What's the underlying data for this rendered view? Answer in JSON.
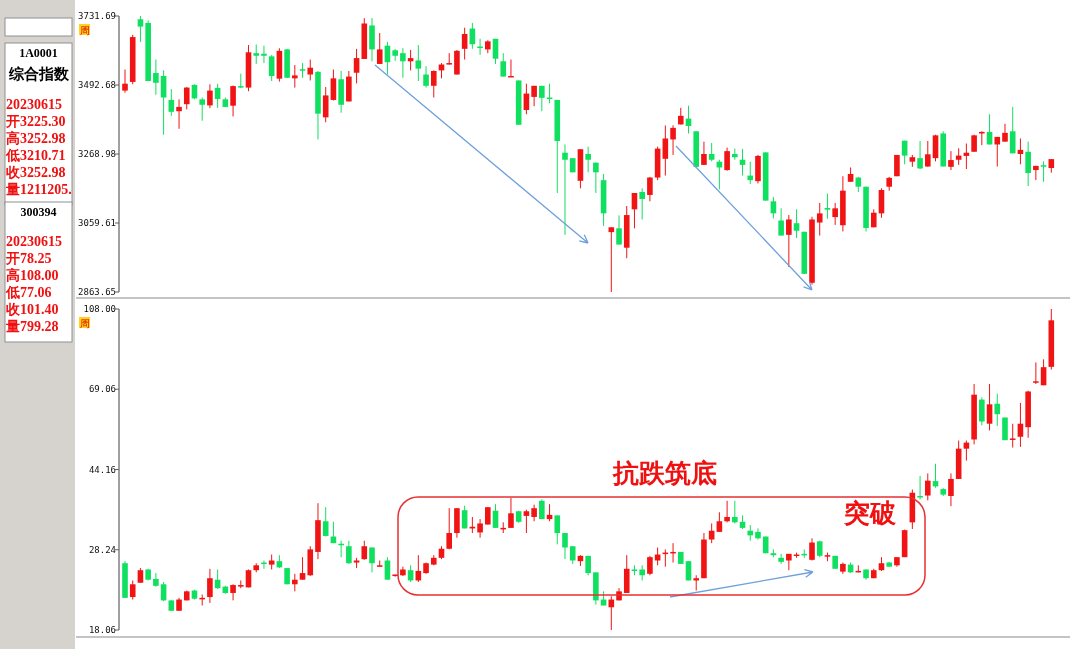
{
  "chart_data": [
    {
      "type": "candlestick",
      "log": true,
      "tick_labels": "y",
      "ylim": [
        2863.65,
        3731.69
      ],
      "yticks": [
        2863.65,
        3059.61,
        3268.98,
        3492.68,
        3731.69
      ],
      "annotations": [
        "周",
        "1A0001",
        "综合指数",
        "20230615",
        "开3225.30",
        "高3252.98",
        "低3210.71",
        "收3252.98",
        "量1211205."
      ],
      "categories": [
        null,
        null,
        null,
        null,
        null,
        null,
        null,
        null,
        null,
        null,
        null,
        null,
        null,
        null,
        null,
        null,
        null,
        null,
        null,
        null,
        null,
        null,
        null,
        null,
        null,
        null,
        null,
        null,
        null,
        null,
        null,
        null,
        null,
        null,
        null,
        null,
        null,
        null,
        null,
        null,
        null,
        null,
        null,
        null,
        null,
        null,
        null,
        null,
        null,
        null,
        null,
        null,
        null,
        null,
        null,
        null,
        null,
        null,
        null,
        null,
        null,
        null,
        null,
        null,
        null,
        null,
        null,
        null,
        null,
        null,
        null,
        null,
        null,
        null,
        null,
        null,
        null,
        null,
        null,
        null,
        null,
        null,
        null,
        null,
        null,
        null,
        null,
        null,
        null,
        null,
        null,
        null,
        null,
        null,
        null,
        null,
        null,
        null,
        null,
        null,
        null,
        null,
        null,
        null,
        null,
        null,
        null,
        null,
        null,
        null,
        null,
        null,
        null,
        null,
        null,
        null,
        null,
        null,
        null,
        null,
        null
      ],
      "ohlc": [
        [
          3474,
          3545,
          3467,
          3497
        ],
        [
          3503,
          3665,
          3495,
          3657
        ],
        [
          3720,
          3731.69,
          3640,
          3694
        ],
        [
          3707,
          3716,
          3506,
          3506
        ],
        [
          3533,
          3579,
          3460,
          3500
        ],
        [
          3523,
          3542,
          3330,
          3451
        ],
        [
          3443,
          3479,
          3391,
          3404
        ],
        [
          3406,
          3445,
          3349,
          3420
        ],
        [
          3429,
          3486,
          3412,
          3484
        ],
        [
          3493,
          3495,
          3445,
          3448
        ],
        [
          3445,
          3451,
          3375,
          3427
        ],
        [
          3425,
          3495,
          3416,
          3474
        ],
        [
          3483,
          3497,
          3417,
          3446
        ],
        [
          3445,
          3451,
          3419,
          3420
        ],
        [
          3424,
          3491,
          3389,
          3489
        ],
        [
          3489,
          3531,
          3482,
          3484
        ],
        [
          3484,
          3629,
          3472,
          3604
        ],
        [
          3601,
          3631,
          3564,
          3592
        ],
        [
          3599,
          3627,
          3567,
          3592
        ],
        [
          3590,
          3595,
          3506,
          3523
        ],
        [
          3514,
          3618,
          3504,
          3609
        ],
        [
          3614,
          3616,
          3517,
          3517
        ],
        [
          3515,
          3560,
          3484,
          3525
        ],
        [
          3546,
          3567,
          3517,
          3542
        ],
        [
          3528,
          3579,
          3508,
          3551
        ],
        [
          3537,
          3540,
          3315,
          3398
        ],
        [
          3386,
          3486,
          3370,
          3458
        ],
        [
          3443,
          3545,
          3441,
          3515
        ],
        [
          3512,
          3540,
          3401,
          3427
        ],
        [
          3438,
          3540,
          3438,
          3521
        ],
        [
          3534,
          3616,
          3498,
          3584
        ],
        [
          3581,
          3724,
          3581,
          3705
        ],
        [
          3698,
          3724,
          3573,
          3614
        ],
        [
          3564,
          3671,
          3564,
          3614
        ],
        [
          3627,
          3640,
          3528,
          3570
        ],
        [
          3611,
          3616,
          3575,
          3592
        ],
        [
          3601,
          3618,
          3517,
          3573
        ],
        [
          3573,
          3612,
          3542,
          3584
        ],
        [
          3576,
          3629,
          3506,
          3548
        ],
        [
          3528,
          3556,
          3484,
          3490
        ],
        [
          3490,
          3542,
          3451,
          3540
        ],
        [
          3542,
          3567,
          3515,
          3562
        ],
        [
          3564,
          3601,
          3562,
          3567
        ],
        [
          3528,
          3612,
          3528,
          3609
        ],
        [
          3616,
          3690,
          3579,
          3668
        ],
        [
          3687,
          3707,
          3616,
          3632
        ],
        [
          3624,
          3651,
          3595,
          3622
        ],
        [
          3614,
          3646,
          3601,
          3642
        ],
        [
          3651,
          3651,
          3564,
          3582
        ],
        [
          3573,
          3601,
          3521,
          3521
        ],
        [
          3521,
          3579,
          3521,
          3523
        ],
        [
          3508,
          3508,
          3362,
          3362
        ],
        [
          3410,
          3497,
          3396,
          3464
        ],
        [
          3453,
          3490,
          3422,
          3490
        ],
        [
          3490,
          3490,
          3406,
          3450
        ],
        [
          3451,
          3497,
          3432,
          3449
        ],
        [
          3443,
          3443,
          3149,
          3310
        ],
        [
          3273,
          3299,
          3025,
          3251
        ],
        [
          3256,
          3256,
          3212,
          3212
        ],
        [
          3186,
          3284,
          3163,
          3284
        ],
        [
          3269,
          3292,
          3212,
          3251
        ],
        [
          3242,
          3242,
          3149,
          3212
        ],
        [
          3188,
          3207,
          3051,
          3088
        ],
        [
          3033,
          3047,
          2863.65,
          3047
        ],
        [
          3044,
          3082,
          2997,
          2997
        ],
        [
          2988,
          3110,
          2958,
          3083
        ],
        [
          3100,
          3149,
          3044,
          3149
        ],
        [
          3152,
          3163,
          3070,
          3131
        ],
        [
          3143,
          3198,
          3124,
          3196
        ],
        [
          3196,
          3292,
          3188,
          3286
        ],
        [
          3254,
          3360,
          3202,
          3318
        ],
        [
          3315,
          3360,
          3266,
          3352
        ],
        [
          3363,
          3417,
          3363,
          3391
        ],
        [
          3382,
          3424,
          3334,
          3358
        ],
        [
          3341,
          3341,
          3227,
          3229
        ],
        [
          3235,
          3308,
          3235,
          3269
        ],
        [
          3269,
          3304,
          3246,
          3251
        ],
        [
          3245,
          3251,
          3160,
          3227
        ],
        [
          3219,
          3289,
          3217,
          3278
        ],
        [
          3269,
          3286,
          3251,
          3259
        ],
        [
          3251,
          3285,
          3202,
          3235
        ],
        [
          3202,
          3245,
          3176,
          3188
        ],
        [
          3185,
          3266,
          3178,
          3263
        ],
        [
          3274,
          3274,
          3126,
          3126
        ],
        [
          3124,
          3137,
          3073,
          3088
        ],
        [
          3067,
          3103,
          3023,
          3023
        ],
        [
          3025,
          3083,
          2933,
          3070
        ],
        [
          3059,
          3100,
          3016,
          3037
        ],
        [
          3034,
          3034,
          2914,
          2914
        ],
        [
          2889,
          3078,
          2884,
          3070
        ],
        [
          3061,
          3119,
          3023,
          3088
        ],
        [
          3104,
          3147,
          3072,
          3099
        ],
        [
          3077,
          3119,
          3054,
          3103
        ],
        [
          3053,
          3200,
          3035,
          3156
        ],
        [
          3183,
          3227,
          3183,
          3207
        ],
        [
          3196,
          3198,
          3152,
          3168
        ],
        [
          3168,
          3168,
          3035,
          3045
        ],
        [
          3047,
          3100,
          3047,
          3090
        ],
        [
          3088,
          3163,
          3075,
          3158
        ],
        [
          3168,
          3198,
          3156,
          3195
        ],
        [
          3200,
          3266,
          3200,
          3266
        ],
        [
          3311,
          3311,
          3237,
          3264
        ],
        [
          3245,
          3266,
          3229,
          3259
        ],
        [
          3256,
          3310,
          3222,
          3224
        ],
        [
          3230,
          3310,
          3229,
          3268
        ],
        [
          3256,
          3330,
          3246,
          3328
        ],
        [
          3334,
          3341,
          3230,
          3230
        ],
        [
          3229,
          3278,
          3219,
          3250
        ],
        [
          3251,
          3287,
          3235,
          3264
        ],
        [
          3263,
          3302,
          3222,
          3273
        ],
        [
          3276,
          3330,
          3276,
          3328
        ],
        [
          3334,
          3341,
          3297,
          3339
        ],
        [
          3339,
          3396,
          3299,
          3299
        ],
        [
          3299,
          3323,
          3230,
          3323
        ],
        [
          3308,
          3365,
          3308,
          3336
        ],
        [
          3341,
          3420,
          3271,
          3271
        ],
        [
          3269,
          3318,
          3237,
          3282
        ],
        [
          3276,
          3308,
          3170,
          3210
        ],
        [
          3219,
          3232,
          3188,
          3232
        ],
        [
          3234,
          3246,
          3183,
          3232
        ],
        [
          3225.3,
          3252.98,
          3210.71,
          3252.98
        ]
      ]
    },
    {
      "type": "candlestick",
      "log": true,
      "tick_labels": "y",
      "ylim": [
        18.06,
        108.0
      ],
      "yticks": [
        18.06,
        28.24,
        44.16,
        69.06,
        {
          "value": 108,
          "label": "108.00"
        }
      ],
      "annotations": [
        "周",
        "300394",
        "20230615",
        "开78.25",
        "高108.00",
        "低77.06",
        "收101.40",
        "量799.28",
        "抗跌筑底",
        "突破"
      ],
      "categories": [
        null,
        null,
        null,
        null,
        null,
        null,
        null,
        null,
        null,
        null,
        null,
        null,
        null,
        null,
        null,
        null,
        null,
        null,
        null,
        null,
        null,
        null,
        null,
        null,
        null,
        null,
        null,
        null,
        null,
        null,
        null,
        null,
        null,
        null,
        null,
        null,
        null,
        null,
        null,
        null,
        null,
        null,
        null,
        null,
        null,
        null,
        null,
        null,
        null,
        null,
        null,
        null,
        null,
        null,
        null,
        null,
        null,
        null,
        null,
        null,
        null,
        null,
        null,
        null,
        null,
        null,
        null,
        null,
        null,
        null,
        null,
        null,
        null,
        null,
        null,
        null,
        null,
        null,
        null,
        null,
        null,
        null,
        null,
        null,
        null,
        null,
        null,
        null,
        null,
        null,
        null,
        null,
        null,
        null,
        null,
        null,
        null,
        null,
        null,
        null,
        null,
        null,
        null,
        null,
        null,
        null,
        null,
        null,
        null,
        null,
        null,
        null,
        null,
        null,
        null,
        null,
        null,
        null,
        null,
        null,
        null
      ],
      "ohlc": [
        [
          26.2,
          26.5,
          21.6,
          21.6
        ],
        [
          21.7,
          23.8,
          21.4,
          23.3
        ],
        [
          23.5,
          25.5,
          23.5,
          25.2
        ],
        [
          25.3,
          25.4,
          23.8,
          23.9
        ],
        [
          24.0,
          24.8,
          23.0,
          23.1
        ],
        [
          23.3,
          23.6,
          21.2,
          21.3
        ],
        [
          21.3,
          21.3,
          20.1,
          20.1
        ],
        [
          20.1,
          21.6,
          20.1,
          21.4
        ],
        [
          21.3,
          22.5,
          21.3,
          22.4
        ],
        [
          22.5,
          22.6,
          21.4,
          21.5
        ],
        [
          21.5,
          22.0,
          20.7,
          21.6
        ],
        [
          21.7,
          25.4,
          21.0,
          24.1
        ],
        [
          23.9,
          25.3,
          22.7,
          22.8
        ],
        [
          23.0,
          23.1,
          22.1,
          22.2
        ],
        [
          22.2,
          23.3,
          21.3,
          23.2
        ],
        [
          23.0,
          23.8,
          22.8,
          23.2
        ],
        [
          22.9,
          25.3,
          22.9,
          25.2
        ],
        [
          25.2,
          26.2,
          24.9,
          25.9
        ],
        [
          26.3,
          26.6,
          25.4,
          26.2
        ],
        [
          26.0,
          27.5,
          25.3,
          26.6
        ],
        [
          26.5,
          27.4,
          25.5,
          25.6
        ],
        [
          25.5,
          25.5,
          23.3,
          23.3
        ],
        [
          23.3,
          24.7,
          22.4,
          23.9
        ],
        [
          23.9,
          27.1,
          23.9,
          24.8
        ],
        [
          24.5,
          28.8,
          24.4,
          28.3
        ],
        [
          27.9,
          36.6,
          26.8,
          33.3
        ],
        [
          33.1,
          35.8,
          30.4,
          30.5
        ],
        [
          30.4,
          33.0,
          29.3,
          29.3
        ],
        [
          29.2,
          29.7,
          27.1,
          29.1
        ],
        [
          28.8,
          29.7,
          26.1,
          26.2
        ],
        [
          26.3,
          27.0,
          25.5,
          26.6
        ],
        [
          26.8,
          29.7,
          26.7,
          28.8
        ],
        [
          28.6,
          28.6,
          24.9,
          26.2
        ],
        [
          25.8,
          26.6,
          25.7,
          25.9
        ],
        [
          26.6,
          27.1,
          23.9,
          23.9
        ],
        [
          24.4,
          24.6,
          24.3,
          24.6
        ],
        [
          24.5,
          25.7,
          24.4,
          25.3
        ],
        [
          25.2,
          25.9,
          23.6,
          23.8
        ],
        [
          23.8,
          27.4,
          23.6,
          25.1
        ],
        [
          24.8,
          26.3,
          24.7,
          26.2
        ],
        [
          26.0,
          27.4,
          25.9,
          27.0
        ],
        [
          27.0,
          28.8,
          26.8,
          28.4
        ],
        [
          28.4,
          35.6,
          28.3,
          31.0
        ],
        [
          31.0,
          35.6,
          30.2,
          35.6
        ],
        [
          35.2,
          36.1,
          31.8,
          31.8
        ],
        [
          31.8,
          33.9,
          31.0,
          32.1
        ],
        [
          31.1,
          33.5,
          30.2,
          32.7
        ],
        [
          32.5,
          35.8,
          32.5,
          35.8
        ],
        [
          35.1,
          36.4,
          31.9,
          31.9
        ],
        [
          31.8,
          32.9,
          31.0,
          31.9
        ],
        [
          31.9,
          37.7,
          31.9,
          34.6
        ],
        [
          35.0,
          35.1,
          32.8,
          33.0
        ],
        [
          34.1,
          35.3,
          31.0,
          35.0
        ],
        [
          33.9,
          36.3,
          33.1,
          35.6
        ],
        [
          37.1,
          37.4,
          33.5,
          33.5
        ],
        [
          33.5,
          36.4,
          33.1,
          34.3
        ],
        [
          34.2,
          34.2,
          29.1,
          31.0
        ],
        [
          31.0,
          31.0,
          26.8,
          28.6
        ],
        [
          28.8,
          28.8,
          26.1,
          26.6
        ],
        [
          26.5,
          27.4,
          25.8,
          27.3
        ],
        [
          27.3,
          27.3,
          24.5,
          24.8
        ],
        [
          24.9,
          24.9,
          20.8,
          21.3
        ],
        [
          21.4,
          22.4,
          20.7,
          20.7
        ],
        [
          20.5,
          21.8,
          18.06,
          21.4
        ],
        [
          21.3,
          22.8,
          21.3,
          22.4
        ],
        [
          22.2,
          27.4,
          22.2,
          25.4
        ],
        [
          25.3,
          25.9,
          24.5,
          25.2
        ],
        [
          25.3,
          25.9,
          23.8,
          24.5
        ],
        [
          24.7,
          27.3,
          24.5,
          27.1
        ],
        [
          26.6,
          28.6,
          25.9,
          27.5
        ],
        [
          27.6,
          28.3,
          25.7,
          27.8
        ],
        [
          27.8,
          29.3,
          26.3,
          27.9
        ],
        [
          27.9,
          27.9,
          26.1,
          26.1
        ],
        [
          26.5,
          26.5,
          23.8,
          23.8
        ],
        [
          23.8,
          24.5,
          22.5,
          24.1
        ],
        [
          24.1,
          31.0,
          24.1,
          29.9
        ],
        [
          29.9,
          32.7,
          29.3,
          31.4
        ],
        [
          31.2,
          34.8,
          31.2,
          33.1
        ],
        [
          33.1,
          37.1,
          32.9,
          33.9
        ],
        [
          33.9,
          37.1,
          32.7,
          32.9
        ],
        [
          33.0,
          34.2,
          31.7,
          31.9
        ],
        [
          31.4,
          32.4,
          29.7,
          30.6
        ],
        [
          31.2,
          31.8,
          29.9,
          30.1
        ],
        [
          30.4,
          30.4,
          27.7,
          27.7
        ],
        [
          27.7,
          28.3,
          27.1,
          27.4
        ],
        [
          27.0,
          27.6,
          26.1,
          26.4
        ],
        [
          26.6,
          27.6,
          25.2,
          27.6
        ],
        [
          27.4,
          27.8,
          27.0,
          27.5
        ],
        [
          27.6,
          28.3,
          27.0,
          27.4
        ],
        [
          26.7,
          30.1,
          26.6,
          29.4
        ],
        [
          29.6,
          29.7,
          27.1,
          27.3
        ],
        [
          27.3,
          27.8,
          26.5,
          27.4
        ],
        [
          27.3,
          27.3,
          25.4,
          25.4
        ],
        [
          25.0,
          26.3,
          24.7,
          26.1
        ],
        [
          26.0,
          26.3,
          24.8,
          24.9
        ],
        [
          25.0,
          25.9,
          24.9,
          25.1
        ],
        [
          25.3,
          25.3,
          23.9,
          24.1
        ],
        [
          24.1,
          25.4,
          24.1,
          25.2
        ],
        [
          25.2,
          27.1,
          25.1,
          26.2
        ],
        [
          26.3,
          26.4,
          25.7,
          25.7
        ],
        [
          25.9,
          27.1,
          25.7,
          27.1
        ],
        [
          27.1,
          31.6,
          27.1,
          31.5
        ],
        [
          32.9,
          39.5,
          31.7,
          38.8
        ],
        [
          38.1,
          42.6,
          37.4,
          37.8
        ],
        [
          38.2,
          43.2,
          37.2,
          41.5
        ],
        [
          41.4,
          45.6,
          39.9,
          40.2
        ],
        [
          39.6,
          39.8,
          38.1,
          38.4
        ],
        [
          38.1,
          43.2,
          36.0,
          41.9
        ],
        [
          41.9,
          51.9,
          41.9,
          49.6
        ],
        [
          49.6,
          51.9,
          46.4,
          51.3
        ],
        [
          52.2,
          71.1,
          50.8,
          67.0
        ],
        [
          65.2,
          66.0,
          56.5,
          57.7
        ],
        [
          57.0,
          71.1,
          54.9,
          63.5
        ],
        [
          63.7,
          67.4,
          56.3,
          60.1
        ],
        [
          59.0,
          59.0,
          52.0,
          52.0
        ],
        [
          52.3,
          57.0,
          49.9,
          52.5
        ],
        [
          53.0,
          64.0,
          50.1,
          57.0
        ],
        [
          55.9,
          68.5,
          52.7,
          68.2
        ],
        [
          71.6,
          80.2,
          71.1,
          72.2
        ],
        [
          70.6,
          81.6,
          70.6,
          78.1
        ],
        [
          78.25,
          108.0,
          77.06,
          101.4
        ]
      ]
    }
  ]
}
